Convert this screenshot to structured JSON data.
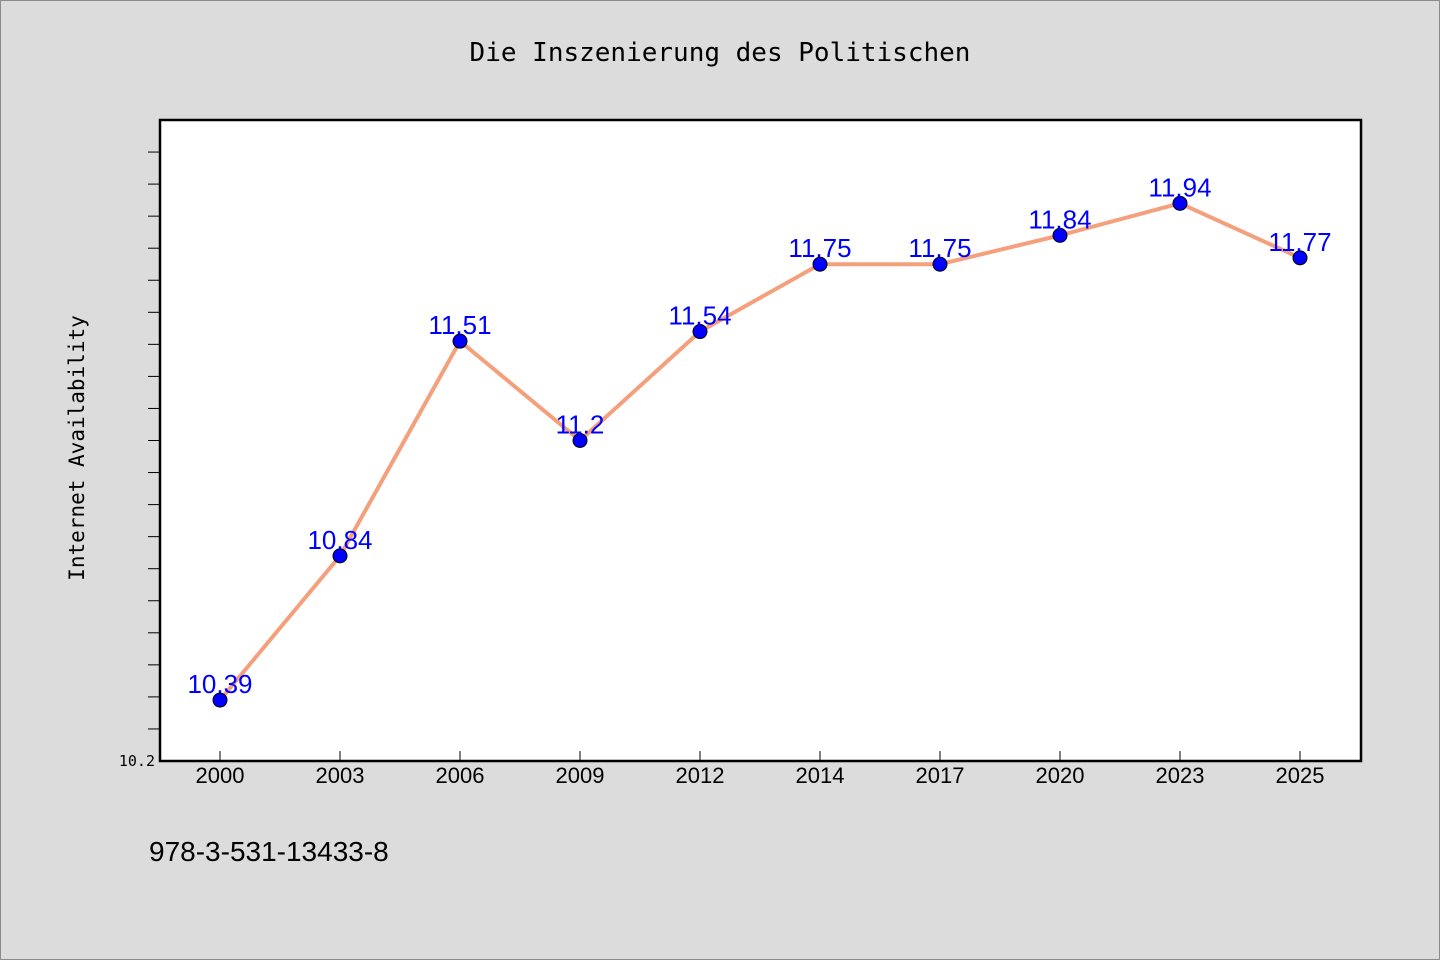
{
  "chart_data": {
    "type": "line",
    "title": "Die Inszenierung des Politischen",
    "xlabel": "",
    "ylabel": "Internet Availability",
    "categories": [
      "2000",
      "2003",
      "2006",
      "2009",
      "2012",
      "2014",
      "2017",
      "2020",
      "2023",
      "2025"
    ],
    "series": [
      {
        "values": [
          10.39,
          10.84,
          11.51,
          11.2,
          11.54,
          11.75,
          11.75,
          11.84,
          11.94,
          11.77
        ],
        "labels": [
          "10.39",
          "10.84",
          "11.51",
          "11.2",
          "11.54",
          "11.75",
          "11.75",
          "11.84",
          "11.94",
          "11.77"
        ],
        "line_color": "#f4a07c",
        "marker_color": "#0000ff"
      }
    ],
    "y_tick_labels": [
      "10.2"
    ],
    "ylim": [
      10.2,
      12.2
    ],
    "grid": false,
    "legend": "none"
  },
  "footer": {
    "isbn": "978-3-531-13433-8"
  }
}
